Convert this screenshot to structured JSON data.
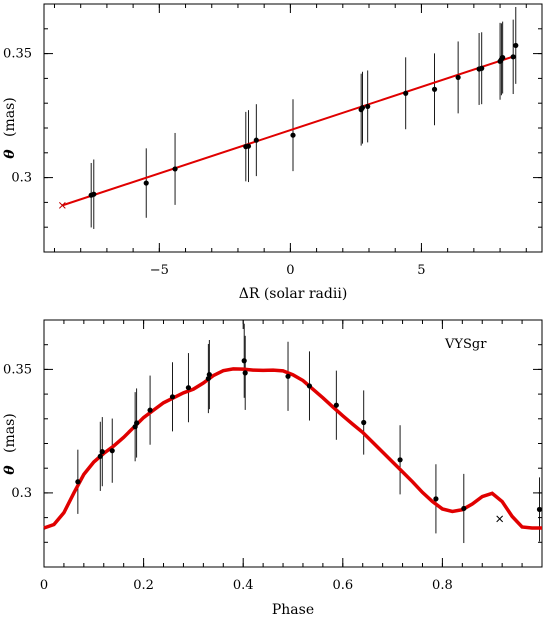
{
  "chart_data": [
    {
      "type": "scatter",
      "panel": "top",
      "title": "",
      "xlabel": "ΔR (solar radii)",
      "ylabel_symbol": "θ",
      "ylabel_unit": "(mas)",
      "xlim": [
        -9.4,
        9.6
      ],
      "ylim": [
        0.27,
        0.37
      ],
      "xticks": [
        -5,
        0,
        5
      ],
      "xtick_labels": [
        "−5",
        "0",
        "5"
      ],
      "yticks": [
        0.3,
        0.35
      ],
      "ytick_labels": [
        "0.3",
        "0.35"
      ],
      "line_color": "#e00000",
      "fit_line": {
        "x": [
          -8.7,
          8.5
        ],
        "y": [
          0.2888,
          0.3488
        ]
      },
      "rejected_point": {
        "x": -8.7,
        "y": 0.2888
      },
      "points": [
        {
          "x": -7.6,
          "y": 0.2929,
          "err": 0.013
        },
        {
          "x": -7.5,
          "y": 0.2933,
          "err": 0.014
        },
        {
          "x": -5.5,
          "y": 0.2978,
          "err": 0.014
        },
        {
          "x": -4.4,
          "y": 0.3035,
          "err": 0.0145
        },
        {
          "x": -1.7,
          "y": 0.3125,
          "err": 0.014
        },
        {
          "x": -1.6,
          "y": 0.3127,
          "err": 0.0145
        },
        {
          "x": -1.3,
          "y": 0.3151,
          "err": 0.0145
        },
        {
          "x": 0.1,
          "y": 0.3171,
          "err": 0.0145
        },
        {
          "x": 2.7,
          "y": 0.3274,
          "err": 0.0145
        },
        {
          "x": 2.75,
          "y": 0.3282,
          "err": 0.0145
        },
        {
          "x": 2.95,
          "y": 0.3287,
          "err": 0.0145
        },
        {
          "x": 4.4,
          "y": 0.334,
          "err": 0.0145
        },
        {
          "x": 5.5,
          "y": 0.3356,
          "err": 0.0145
        },
        {
          "x": 6.4,
          "y": 0.3404,
          "err": 0.0145
        },
        {
          "x": 7.2,
          "y": 0.3438,
          "err": 0.0145
        },
        {
          "x": 7.3,
          "y": 0.3441,
          "err": 0.0145
        },
        {
          "x": 8.0,
          "y": 0.3469,
          "err": 0.0155
        },
        {
          "x": 8.05,
          "y": 0.3477,
          "err": 0.0145
        },
        {
          "x": 8.1,
          "y": 0.3484,
          "err": 0.0145
        },
        {
          "x": 8.5,
          "y": 0.3487,
          "err": 0.015
        },
        {
          "x": 8.6,
          "y": 0.3533,
          "err": 0.0155
        }
      ]
    },
    {
      "type": "scatter",
      "panel": "bottom",
      "title": "",
      "annotation": "VYSgr",
      "xlabel": "Phase",
      "ylabel_symbol": "θ",
      "ylabel_unit": "(mas)",
      "xlim": [
        0,
        1
      ],
      "ylim": [
        0.27,
        0.37
      ],
      "xticks": [
        0,
        0.2,
        0.4,
        0.6,
        0.8
      ],
      "xtick_labels": [
        "0",
        "0.2",
        "0.4",
        "0.6",
        "0.8"
      ],
      "yticks": [
        0.3,
        0.35
      ],
      "ytick_labels": [
        "0.3",
        "0.35"
      ],
      "line_color": "#e00000",
      "curve": {
        "x": [
          0,
          0.02,
          0.04,
          0.06,
          0.08,
          0.1,
          0.12,
          0.14,
          0.16,
          0.18,
          0.2,
          0.22,
          0.24,
          0.26,
          0.28,
          0.3,
          0.32,
          0.34,
          0.36,
          0.38,
          0.4,
          0.42,
          0.44,
          0.46,
          0.48,
          0.5,
          0.52,
          0.54,
          0.56,
          0.58,
          0.6,
          0.62,
          0.64,
          0.66,
          0.68,
          0.7,
          0.72,
          0.74,
          0.76,
          0.78,
          0.8,
          0.82,
          0.84,
          0.86,
          0.88,
          0.9,
          0.92,
          0.94,
          0.96,
          0.98,
          1.0
        ],
        "y": [
          0.2858,
          0.2872,
          0.292,
          0.3,
          0.3075,
          0.3125,
          0.316,
          0.319,
          0.3225,
          0.3265,
          0.3305,
          0.3335,
          0.3365,
          0.3385,
          0.3405,
          0.342,
          0.3445,
          0.3475,
          0.3495,
          0.3502,
          0.3501,
          0.3497,
          0.3496,
          0.3497,
          0.3494,
          0.3478,
          0.3455,
          0.342,
          0.3385,
          0.3348,
          0.3312,
          0.3278,
          0.3245,
          0.3205,
          0.3165,
          0.3125,
          0.3085,
          0.3045,
          0.3002,
          0.2965,
          0.2935,
          0.2925,
          0.2932,
          0.2955,
          0.2985,
          0.2998,
          0.2965,
          0.2905,
          0.2862,
          0.2858,
          0.2858
        ]
      },
      "rejected_point": {
        "x": 0.915,
        "y": 0.2895
      },
      "points": [
        {
          "x": 0.068,
          "y": 0.3045,
          "err": 0.013
        },
        {
          "x": 0.113,
          "y": 0.3148,
          "err": 0.014
        },
        {
          "x": 0.117,
          "y": 0.3167,
          "err": 0.014
        },
        {
          "x": 0.137,
          "y": 0.3171,
          "err": 0.013
        },
        {
          "x": 0.183,
          "y": 0.3268,
          "err": 0.014
        },
        {
          "x": 0.186,
          "y": 0.3283,
          "err": 0.014
        },
        {
          "x": 0.213,
          "y": 0.3335,
          "err": 0.014
        },
        {
          "x": 0.258,
          "y": 0.3389,
          "err": 0.014
        },
        {
          "x": 0.29,
          "y": 0.3426,
          "err": 0.014
        },
        {
          "x": 0.33,
          "y": 0.3463,
          "err": 0.014
        },
        {
          "x": 0.332,
          "y": 0.3479,
          "err": 0.014
        },
        {
          "x": 0.402,
          "y": 0.3535,
          "err": 0.015
        },
        {
          "x": 0.404,
          "y": 0.3486,
          "err": 0.015
        },
        {
          "x": 0.49,
          "y": 0.3472,
          "err": 0.014
        },
        {
          "x": 0.533,
          "y": 0.3433,
          "err": 0.014
        },
        {
          "x": 0.587,
          "y": 0.3355,
          "err": 0.014
        },
        {
          "x": 0.642,
          "y": 0.3285,
          "err": 0.013
        },
        {
          "x": 0.715,
          "y": 0.3134,
          "err": 0.014
        },
        {
          "x": 0.787,
          "y": 0.2976,
          "err": 0.014
        },
        {
          "x": 0.843,
          "y": 0.2937,
          "err": 0.014
        },
        {
          "x": 0.995,
          "y": 0.2933,
          "err": 0.013
        }
      ]
    }
  ]
}
